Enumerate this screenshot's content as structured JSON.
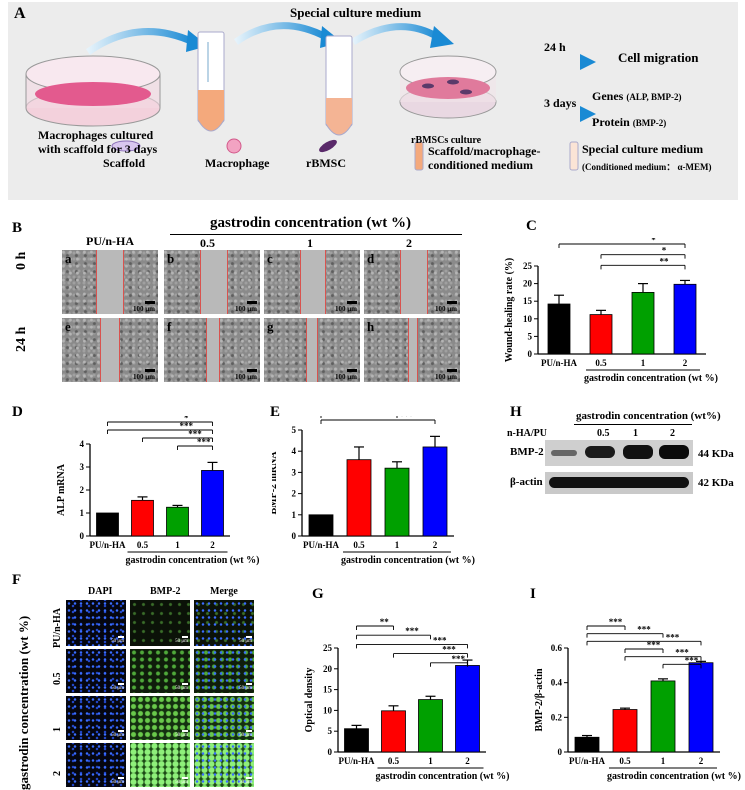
{
  "panels": {
    "A": "A",
    "B": "B",
    "C": "C",
    "D": "D",
    "E": "E",
    "F": "F",
    "G": "G",
    "H": "H",
    "I": "I"
  },
  "schematic": {
    "special_medium_top": "Special culture medium",
    "macrophages_caption_1": "Macrophages cultured",
    "macrophages_caption_2": "with scaffold for 3 days",
    "rbmsc_culture": "rBMSCs culture",
    "arrow_24h": "24 h",
    "arrow_3days": "3 days",
    "cell_migration": "Cell migration",
    "genes": "Genes",
    "genes_detail": "(ALP, BMP-2)",
    "protein": "Protein",
    "protein_detail": "(BMP-2)",
    "legend_scaffold": "Scaffold",
    "legend_macrophage": "Macrophage",
    "legend_rbmsc": "rBMSC",
    "legend_conditioned_1": "Scaffold/macrophage-",
    "legend_conditioned_2": "conditioned medium",
    "legend_special": "Special culture medium",
    "legend_special_detail": "(Conditioned medium： α-MEM)"
  },
  "migration": {
    "header": "gastrodin concentration (wt %)",
    "group_pu": "PU/n-HA",
    "groups": [
      "0.5",
      "1",
      "2"
    ],
    "row_0h": "0 h",
    "row_24h": "24 h",
    "tiles_0h": [
      "a",
      "b",
      "c",
      "d"
    ],
    "tiles_24h": [
      "e",
      "f",
      "g",
      "h"
    ],
    "scalebar": "100 μm"
  },
  "western": {
    "header": "gastrodin concentration (wt%)",
    "lane_pu": "n-HA/PU",
    "lanes": [
      "0.5",
      "1",
      "2"
    ],
    "bmp2": "BMP-2",
    "bmp2_kda": "44 KDa",
    "actin": "β-actin",
    "actin_kda": "42 KDa"
  },
  "fluorescence": {
    "columns": [
      "DAPI",
      "BMP-2",
      "Merge"
    ],
    "side_label": "gastrodin concentration (wt %)",
    "rows": [
      "PU/n-HA",
      "0.5",
      "1",
      "2"
    ],
    "scalebar": "50 μm"
  },
  "colors": {
    "pu": "#000000",
    "c05": "#ff0000",
    "c1": "#00a000",
    "c2": "#0000ff"
  },
  "chart_data": [
    {
      "id": "C",
      "type": "bar",
      "categories": [
        "PU/n-HA",
        "0.5",
        "1",
        "2"
      ],
      "values": [
        14.2,
        11.2,
        17.5,
        19.8
      ],
      "errors": [
        2.5,
        1.2,
        2.5,
        1.1
      ],
      "ylabel": "Wound-healing rate (%)",
      "xlabel": "gastrodin concentration (wt %)",
      "ylim": [
        0,
        25
      ],
      "yticks": [
        0,
        5,
        10,
        15,
        20,
        25
      ],
      "sig": [
        {
          "from": 0,
          "to": 3,
          "label": "*"
        },
        {
          "from": 1,
          "to": 3,
          "label": "*"
        },
        {
          "from": 1,
          "to": 3,
          "label": "**"
        }
      ]
    },
    {
      "id": "D",
      "type": "bar",
      "categories": [
        "PU/n-HA",
        "0.5",
        "1",
        "2"
      ],
      "values": [
        1.0,
        1.55,
        1.25,
        2.85
      ],
      "errors": [
        0,
        0.15,
        0.08,
        0.35
      ],
      "ylabel": "ALP mRNA",
      "xlabel": "gastrodin concentration (wt %)",
      "ylim": [
        0,
        4
      ],
      "yticks": [
        0,
        1,
        2,
        3,
        4
      ],
      "sig": [
        {
          "from": 0,
          "to": 3,
          "label": "*"
        },
        {
          "from": 0,
          "to": 3,
          "label": "***"
        },
        {
          "from": 1,
          "to": 3,
          "label": "***"
        },
        {
          "from": 2,
          "to": 3,
          "label": "***"
        }
      ]
    },
    {
      "id": "E",
      "type": "bar",
      "categories": [
        "PU/n-HA",
        "0.5",
        "1",
        "2"
      ],
      "values": [
        1.0,
        3.6,
        3.2,
        4.2
      ],
      "errors": [
        0,
        0.6,
        0.3,
        0.5
      ],
      "ylabel": "BMP-2 mRNA",
      "xlabel": "gastrodin concentration (wt %)",
      "ylim": [
        0,
        5
      ],
      "yticks": [
        0,
        1,
        2,
        3,
        4,
        5
      ],
      "sig": [
        {
          "from": 0,
          "to": 1,
          "label": "***"
        },
        {
          "from": 0,
          "to": 2,
          "label": "***"
        },
        {
          "from": 0,
          "to": 3,
          "label": "***"
        }
      ]
    },
    {
      "id": "G",
      "type": "bar",
      "categories": [
        "PU/n-HA",
        "0.5",
        "1",
        "2"
      ],
      "values": [
        5.6,
        9.9,
        12.6,
        20.8
      ],
      "errors": [
        0.8,
        1.2,
        0.8,
        1.3
      ],
      "ylabel": "Optical density",
      "xlabel": "gastrodin concentration (wt %)",
      "ylim": [
        0,
        25
      ],
      "yticks": [
        0,
        5,
        10,
        15,
        20,
        25
      ],
      "sig": [
        {
          "from": 0,
          "to": 1,
          "label": "**"
        },
        {
          "from": 0,
          "to": 2,
          "label": "***"
        },
        {
          "from": 0,
          "to": 3,
          "label": "***"
        },
        {
          "from": 1,
          "to": 3,
          "label": "***"
        },
        {
          "from": 2,
          "to": 3,
          "label": "***"
        }
      ]
    },
    {
      "id": "I",
      "type": "bar",
      "categories": [
        "PU/n-HA",
        "0.5",
        "1",
        "2"
      ],
      "values": [
        0.085,
        0.245,
        0.41,
        0.515
      ],
      "errors": [
        0.01,
        0.008,
        0.012,
        0.008
      ],
      "ylabel": "BMP-2/β-actin",
      "xlabel": "gastrodin concentration (wt %)",
      "ylim": [
        0,
        0.6
      ],
      "yticks": [
        0,
        0.2,
        0.4,
        0.6
      ],
      "sig": [
        {
          "from": 0,
          "to": 1,
          "label": "***"
        },
        {
          "from": 0,
          "to": 2,
          "label": "***"
        },
        {
          "from": 0,
          "to": 3,
          "label": "***"
        },
        {
          "from": 1,
          "to": 2,
          "label": "***"
        },
        {
          "from": 1,
          "to": 3,
          "label": "***"
        },
        {
          "from": 2,
          "to": 3,
          "label": "***"
        }
      ]
    }
  ]
}
